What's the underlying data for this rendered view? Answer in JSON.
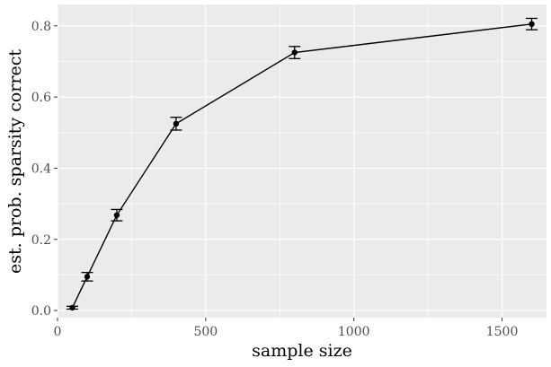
{
  "chart_data": {
    "type": "line",
    "title": "",
    "xlabel": "sample size",
    "ylabel": "est. prob. sparsity correct",
    "xlim": [
      0,
      1650
    ],
    "ylim": [
      -0.02,
      0.86
    ],
    "x_ticks": [
      0,
      500,
      1000,
      1500
    ],
    "x_tick_labels": [
      "0",
      "500",
      "1000",
      "1500"
    ],
    "y_ticks": [
      0.0,
      0.2,
      0.4,
      0.6,
      0.8
    ],
    "y_tick_labels": [
      "0.0",
      "0.2",
      "0.4",
      "0.6",
      "0.8"
    ],
    "grid": true,
    "background": "#ebebeb",
    "gridline_color": "#ffffff",
    "series_color": "#000000",
    "series": [
      {
        "x": [
          50,
          100,
          200,
          400,
          800,
          1600
        ],
        "y": [
          0.008,
          0.095,
          0.268,
          0.525,
          0.725,
          0.805
        ],
        "error_low": [
          0.004,
          0.083,
          0.252,
          0.507,
          0.708,
          0.789
        ],
        "error_high": [
          0.012,
          0.107,
          0.284,
          0.543,
          0.742,
          0.821
        ]
      }
    ]
  }
}
